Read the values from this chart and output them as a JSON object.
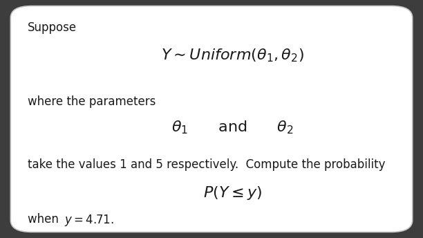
{
  "bg_color": "#ffffff",
  "border_color": "#c8c8c8",
  "text_color": "#1a1a1a",
  "title_text": "Suppose",
  "line1_math": "$Y \\sim Uniform(\\theta_1, \\theta_2)$",
  "line2_text": "where the parameters",
  "line3_math": "$\\theta_1 \\quad\\quad \\mathrm{and} \\quad\\quad \\theta_2$",
  "line4_text": "take the values 1 and 5 respectively.  Compute the probability",
  "line5_math": "$P(Y \\leq y)$",
  "line6_plain": "when ",
  "line6_italic": "$y=4.71.$",
  "outer_bg": "#3d3d3d",
  "fig_width": 6.12,
  "fig_height": 3.44,
  "dpi": 100
}
